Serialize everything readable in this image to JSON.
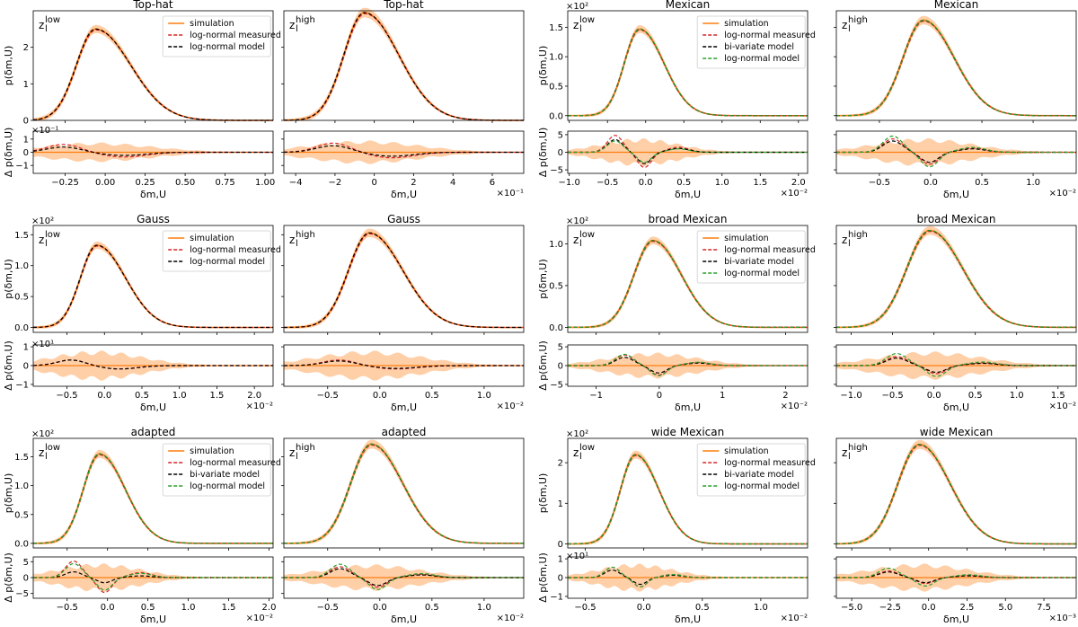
{
  "figure": {
    "title": "Figure grid of PDFs p(delta_m,U) with residual panels"
  },
  "chart_data": [
    {
      "type": "line",
      "title": "Top-hat",
      "z_label": "z",
      "z_sup": "low",
      "legend": [
        "simulation",
        "log-normal measured",
        "log-normal model"
      ],
      "series": [
        {
          "name": "simulation",
          "color": "#ff7f0e"
        },
        {
          "name": "log-normal measured",
          "color": "#d62728"
        },
        {
          "name": "log-normal model",
          "color": "#000000"
        }
      ],
      "ylabel": "p(δm,U)",
      "top_mult": "",
      "top_ylim": [
        0,
        3
      ],
      "top_yticks": [
        "0",
        "1",
        "2"
      ],
      "top_ytick_vals": [
        0,
        1,
        2
      ],
      "peak": {
        "x": -0.06,
        "y": 2.5,
        "sigma_l": 0.12,
        "sigma_r": 0.22
      },
      "xlim": [
        -0.45,
        1.05
      ],
      "xticks": [
        "−0.25",
        "0.00",
        "0.25",
        "0.50",
        "0.75",
        "1.00"
      ],
      "xtick_vals": [
        -0.25,
        0,
        0.25,
        0.5,
        0.75,
        1.0
      ],
      "xlabel": "δm,U",
      "x_mult": "",
      "resid_ylabel": "Δ p(δm,U)",
      "resid_mult": "×10⁻¹",
      "resid_ylim": [
        -1.6,
        1.6
      ],
      "resid_yticks": [
        "−1",
        "0",
        "1"
      ],
      "resid_ytick_vals": [
        -1,
        0,
        1
      ],
      "resid_band": 0.75,
      "resid_amp": [
        0.6,
        0.4,
        0.0
      ]
    },
    {
      "type": "line",
      "title": "Top-hat",
      "z_label": "z",
      "z_sup": "high",
      "legend": [],
      "series": [
        {
          "name": "simulation",
          "color": "#ff7f0e"
        },
        {
          "name": "log-normal measured",
          "color": "#d62728"
        },
        {
          "name": "log-normal model",
          "color": "#000000"
        }
      ],
      "ylabel": "",
      "top_mult": "",
      "top_ylim": [
        0,
        3
      ],
      "top_yticks": [],
      "top_ytick_vals": [
        0,
        1,
        2
      ],
      "peak": {
        "x": -0.5,
        "y": 2.95,
        "sigma_l": 1.05,
        "sigma_r": 1.75
      },
      "xlim": [
        -4.6,
        7.6
      ],
      "xticks": [
        "−4",
        "−2",
        "0",
        "2",
        "4",
        "6"
      ],
      "xtick_vals": [
        -4,
        -2,
        0,
        2,
        4,
        6
      ],
      "xlabel": "δm,U",
      "x_mult": "×10⁻¹",
      "resid_ylabel": "",
      "resid_mult": "",
      "resid_ylim": [
        -1.6,
        1.6
      ],
      "resid_yticks": [],
      "resid_ytick_vals": [
        -1,
        0,
        1
      ],
      "resid_band": 0.9,
      "resid_amp": [
        0.7,
        0.5,
        0.0
      ]
    },
    {
      "type": "line",
      "title": "Mexican",
      "z_label": "z",
      "z_sup": "low",
      "legend": [
        "simulation",
        "log-normal measured",
        "bi-variate model",
        "log-normal model"
      ],
      "series": [
        {
          "name": "simulation",
          "color": "#ff7f0e"
        },
        {
          "name": "log-normal measured",
          "color": "#d62728"
        },
        {
          "name": "bi-variate model",
          "color": "#000000"
        },
        {
          "name": "log-normal model",
          "color": "#2ca02c"
        }
      ],
      "ylabel": "p(δm,U)",
      "top_mult": "×10²",
      "top_ylim": [
        -0.08,
        1.78
      ],
      "top_yticks": [
        "0.0",
        "0.5",
        "1.0",
        "1.5"
      ],
      "top_ytick_vals": [
        0,
        0.5,
        1.0,
        1.5
      ],
      "peak": {
        "x": -0.08,
        "y": 1.47,
        "sigma_l": 0.2,
        "sigma_r": 0.32
      },
      "xlim": [
        -1.02,
        2.12
      ],
      "xticks": [
        "−1.0",
        "−0.5",
        "0.0",
        "0.5",
        "1.0",
        "1.5",
        "2.0"
      ],
      "xtick_vals": [
        -1,
        -0.5,
        0,
        0.5,
        1,
        1.5,
        2
      ],
      "xlabel": "δm,U",
      "x_mult": "×10⁻²",
      "resid_ylabel": "Δ p(δm,U)",
      "resid_mult": "",
      "resid_ylim": [
        -6,
        6
      ],
      "resid_yticks": [
        "−5",
        "0",
        "5"
      ],
      "resid_ytick_vals": [
        -5,
        0,
        5
      ],
      "resid_band": 4.0,
      "resid_amp": [
        4.8,
        3.6,
        3.2
      ]
    },
    {
      "type": "line",
      "title": "Mexican",
      "z_label": "z",
      "z_sup": "high",
      "legend": [],
      "series": [
        {
          "name": "simulation",
          "color": "#ff7f0e"
        },
        {
          "name": "log-normal measured",
          "color": "#d62728"
        },
        {
          "name": "bi-variate model",
          "color": "#000000"
        },
        {
          "name": "log-normal model",
          "color": "#2ca02c"
        }
      ],
      "ylabel": "",
      "top_mult": "",
      "top_ylim": [
        -0.08,
        1.78
      ],
      "top_yticks": [],
      "top_ytick_vals": [
        0,
        0.5,
        1.0,
        1.5
      ],
      "peak": {
        "x": -0.07,
        "y": 1.62,
        "sigma_l": 0.2,
        "sigma_r": 0.3
      },
      "xlim": [
        -0.92,
        1.42
      ],
      "xticks": [
        "−0.5",
        "0.0",
        "0.5",
        "1.0"
      ],
      "xtick_vals": [
        -0.5,
        0,
        0.5,
        1.0
      ],
      "xlabel": "δm,U",
      "x_mult": "×10⁻²",
      "resid_ylabel": "",
      "resid_mult": "",
      "resid_ylim": [
        -6,
        6
      ],
      "resid_yticks": [],
      "resid_ytick_vals": [
        -5,
        0,
        5
      ],
      "resid_band": 4.0,
      "resid_amp": [
        3.8,
        3.2,
        4.6
      ]
    },
    {
      "type": "line",
      "title": "Gauss",
      "z_label": "z",
      "z_sup": "low",
      "legend": [
        "simulation",
        "log-normal measured",
        "log-normal model"
      ],
      "series": [
        {
          "name": "simulation",
          "color": "#ff7f0e"
        },
        {
          "name": "log-normal measured",
          "color": "#d62728"
        },
        {
          "name": "log-normal model",
          "color": "#000000"
        }
      ],
      "ylabel": "p(δm,U)",
      "top_mult": "×10²",
      "top_ylim": [
        -0.08,
        1.65
      ],
      "top_yticks": [
        "0.0",
        "0.5",
        "1.0",
        "1.5"
      ],
      "top_ytick_vals": [
        0,
        0.5,
        1.0,
        1.5
      ],
      "peak": {
        "x": -0.1,
        "y": 1.33,
        "sigma_l": 0.22,
        "sigma_r": 0.38
      },
      "xlim": [
        -0.95,
        2.25
      ],
      "xticks": [
        "−0.5",
        "0.0",
        "0.5",
        "1.0",
        "1.5",
        "2.0"
      ],
      "xtick_vals": [
        -0.5,
        0,
        0.5,
        1,
        1.5,
        2
      ],
      "xlabel": "δm,U",
      "x_mult": "×10⁻²",
      "resid_ylabel": "Δ p(δm,U)",
      "resid_mult": "×10¹",
      "resid_ylim": [
        -1.1,
        1.1
      ],
      "resid_yticks": [
        "−1",
        "0",
        "1"
      ],
      "resid_ytick_vals": [
        -1,
        0,
        1
      ],
      "resid_band": 0.8,
      "resid_amp": [
        0.3,
        0.3,
        0.0
      ]
    },
    {
      "type": "line",
      "title": "Gauss",
      "z_label": "z",
      "z_sup": "high",
      "legend": [],
      "series": [
        {
          "name": "simulation",
          "color": "#ff7f0e"
        },
        {
          "name": "log-normal measured",
          "color": "#d62728"
        },
        {
          "name": "log-normal model",
          "color": "#000000"
        }
      ],
      "ylabel": "",
      "top_mult": "",
      "top_ylim": [
        -0.08,
        1.65
      ],
      "top_yticks": [],
      "top_ytick_vals": [
        0,
        0.5,
        1.0,
        1.5
      ],
      "peak": {
        "x": -0.1,
        "y": 1.53,
        "sigma_l": 0.2,
        "sigma_r": 0.32
      },
      "xlim": [
        -0.92,
        1.38
      ],
      "xticks": [
        "−0.5",
        "0.0",
        "0.5",
        "1.0"
      ],
      "xtick_vals": [
        -0.5,
        0,
        0.5,
        1.0
      ],
      "xlabel": "δm,U",
      "x_mult": "×10⁻²",
      "resid_ylabel": "",
      "resid_mult": "",
      "resid_ylim": [
        -1.1,
        1.1
      ],
      "resid_yticks": [],
      "resid_ytick_vals": [
        -1,
        0,
        1
      ],
      "resid_band": 0.8,
      "resid_amp": [
        0.3,
        0.25,
        0.0
      ]
    },
    {
      "type": "line",
      "title": "broad Mexican",
      "z_label": "z",
      "z_sup": "low",
      "legend": [
        "simulation",
        "log-normal measured",
        "bi-variate model",
        "log-normal model"
      ],
      "series": [
        {
          "name": "simulation",
          "color": "#ff7f0e"
        },
        {
          "name": "log-normal measured",
          "color": "#d62728"
        },
        {
          "name": "bi-variate model",
          "color": "#000000"
        },
        {
          "name": "log-normal model",
          "color": "#2ca02c"
        }
      ],
      "ylabel": "p(δm,U)",
      "top_mult": "×10²",
      "top_ylim": [
        -0.06,
        1.22
      ],
      "top_yticks": [
        "0.0",
        "0.5",
        "1.0"
      ],
      "top_ytick_vals": [
        0,
        0.5,
        1.0
      ],
      "peak": {
        "x": -0.1,
        "y": 1.04,
        "sigma_l": 0.3,
        "sigma_r": 0.45
      },
      "xlim": [
        -1.45,
        2.35
      ],
      "xticks": [
        "−1",
        "0",
        "1",
        "2"
      ],
      "xtick_vals": [
        -1,
        0,
        1,
        2
      ],
      "xlabel": "δm,U",
      "x_mult": "×10⁻²",
      "resid_ylabel": "Δ p(δm,U)",
      "resid_mult": "",
      "resid_ylim": [
        -5.5,
        5.5
      ],
      "resid_yticks": [
        "−5",
        "0",
        "5"
      ],
      "resid_ytick_vals": [
        -5,
        0,
        5
      ],
      "resid_band": 3.5,
      "resid_amp": [
        2.8,
        2.2,
        3.0
      ]
    },
    {
      "type": "line",
      "title": "broad Mexican",
      "z_label": "z",
      "z_sup": "high",
      "legend": [],
      "series": [
        {
          "name": "simulation",
          "color": "#ff7f0e"
        },
        {
          "name": "log-normal measured",
          "color": "#d62728"
        },
        {
          "name": "bi-variate model",
          "color": "#000000"
        },
        {
          "name": "log-normal model",
          "color": "#2ca02c"
        }
      ],
      "ylabel": "",
      "top_mult": "",
      "top_ylim": [
        -0.06,
        1.22
      ],
      "top_yticks": [],
      "top_ytick_vals": [
        0,
        0.5,
        1.0
      ],
      "peak": {
        "x": -0.05,
        "y": 1.16,
        "sigma_l": 0.28,
        "sigma_r": 0.4
      },
      "xlim": [
        -1.18,
        1.72
      ],
      "xticks": [
        "−1.0",
        "−0.5",
        "0.0",
        "0.5",
        "1.0",
        "1.5"
      ],
      "xtick_vals": [
        -1,
        -0.5,
        0,
        0.5,
        1,
        1.5
      ],
      "xlabel": "δm,U",
      "x_mult": "×10⁻²",
      "resid_ylabel": "",
      "resid_mult": "",
      "resid_ylim": [
        -5.5,
        5.5
      ],
      "resid_yticks": [],
      "resid_ytick_vals": [
        -5,
        0,
        5
      ],
      "resid_band": 3.8,
      "resid_amp": [
        2.4,
        2.0,
        3.2
      ]
    },
    {
      "type": "line",
      "title": "adapted",
      "z_label": "z",
      "z_sup": "low",
      "legend": [
        "simulation",
        "log-normal measured",
        "bi-variate model",
        "log-normal model"
      ],
      "series": [
        {
          "name": "simulation",
          "color": "#ff7f0e"
        },
        {
          "name": "log-normal measured",
          "color": "#d62728"
        },
        {
          "name": "bi-variate model",
          "color": "#000000"
        },
        {
          "name": "log-normal model",
          "color": "#2ca02c"
        }
      ],
      "ylabel": "p(δm,U)",
      "top_mult": "×10²",
      "top_ylim": [
        -0.08,
        1.82
      ],
      "top_yticks": [
        "0.0",
        "0.5",
        "1.0",
        "1.5"
      ],
      "top_ytick_vals": [
        0,
        0.5,
        1.0,
        1.5
      ],
      "peak": {
        "x": -0.1,
        "y": 1.55,
        "sigma_l": 0.2,
        "sigma_r": 0.32
      },
      "xlim": [
        -0.92,
        2.05
      ],
      "xticks": [
        "−0.5",
        "0.0",
        "0.5",
        "1.0",
        "1.5",
        "2.0"
      ],
      "xtick_vals": [
        -0.5,
        0,
        0.5,
        1,
        1.5,
        2
      ],
      "xlabel": "δm,U",
      "x_mult": "×10⁻²",
      "resid_ylabel": "Δ p(δm,U)",
      "resid_mult": "",
      "resid_ylim": [
        -6.5,
        6.5
      ],
      "resid_yticks": [
        "−5",
        "0",
        "5"
      ],
      "resid_ytick_vals": [
        -5,
        0,
        5
      ],
      "resid_band": 4.5,
      "resid_amp": [
        5.2,
        1.8,
        4.4
      ]
    },
    {
      "type": "line",
      "title": "adapted",
      "z_label": "z",
      "z_sup": "high",
      "legend": [],
      "series": [
        {
          "name": "simulation",
          "color": "#ff7f0e"
        },
        {
          "name": "log-normal measured",
          "color": "#d62728"
        },
        {
          "name": "bi-variate model",
          "color": "#000000"
        },
        {
          "name": "log-normal model",
          "color": "#2ca02c"
        }
      ],
      "ylabel": "",
      "top_mult": "",
      "top_ylim": [
        -0.08,
        1.82
      ],
      "top_yticks": [],
      "top_ytick_vals": [
        0,
        0.5,
        1.0,
        1.5
      ],
      "peak": {
        "x": -0.08,
        "y": 1.72,
        "sigma_l": 0.2,
        "sigma_r": 0.3
      },
      "xlim": [
        -0.92,
        1.38
      ],
      "xticks": [
        "−0.5",
        "0.0",
        "0.5",
        "1.0"
      ],
      "xtick_vals": [
        -0.5,
        0,
        0.5,
        1.0
      ],
      "xlabel": "δm,U",
      "x_mult": "×10⁻²",
      "resid_ylabel": "",
      "resid_mult": "",
      "resid_ylim": [
        -6.5,
        6.5
      ],
      "resid_yticks": [],
      "resid_ytick_vals": [
        -5,
        0,
        5
      ],
      "resid_band": 4.2,
      "resid_amp": [
        3.4,
        2.8,
        4.2
      ]
    },
    {
      "type": "line",
      "title": "wide Mexican",
      "z_label": "z",
      "z_sup": "low",
      "legend": [
        "simulation",
        "log-normal measured",
        "bi-variate model",
        "log-normal model"
      ],
      "series": [
        {
          "name": "simulation",
          "color": "#ff7f0e"
        },
        {
          "name": "log-normal measured",
          "color": "#d62728"
        },
        {
          "name": "bi-variate model",
          "color": "#000000"
        },
        {
          "name": "log-normal model",
          "color": "#2ca02c"
        }
      ],
      "ylabel": "p(δm,U)",
      "top_mult": "×10²",
      "top_ylim": [
        -0.1,
        2.6
      ],
      "top_yticks": [
        "0",
        "1",
        "2"
      ],
      "top_ytick_vals": [
        0,
        1,
        2
      ],
      "peak": {
        "x": -0.07,
        "y": 2.2,
        "sigma_l": 0.13,
        "sigma_r": 0.2
      },
      "xlim": [
        -0.65,
        1.4
      ],
      "xticks": [
        "−0.5",
        "0.0",
        "0.5",
        "1.0"
      ],
      "xtick_vals": [
        -0.5,
        0,
        0.5,
        1.0
      ],
      "xlabel": "δm,U",
      "x_mult": "×10⁻²",
      "resid_ylabel": "Δ p(δm,U)",
      "resid_mult": "×10¹",
      "resid_ylim": [
        -1.1,
        1.1
      ],
      "resid_yticks": [
        "−1",
        "0",
        "1"
      ],
      "resid_ytick_vals": [
        -1,
        0,
        1
      ],
      "resid_band": 0.75,
      "resid_amp": [
        0.55,
        0.4,
        0.55
      ]
    },
    {
      "type": "line",
      "title": "wide Mexican",
      "z_label": "z",
      "z_sup": "high",
      "legend": [],
      "series": [
        {
          "name": "simulation",
          "color": "#ff7f0e"
        },
        {
          "name": "log-normal measured",
          "color": "#d62728"
        },
        {
          "name": "bi-variate model",
          "color": "#000000"
        },
        {
          "name": "log-normal model",
          "color": "#2ca02c"
        }
      ],
      "ylabel": "",
      "top_mult": "",
      "top_ylim": [
        -0.1,
        2.6
      ],
      "top_yticks": [],
      "top_ytick_vals": [
        0,
        1,
        2
      ],
      "peak": {
        "x": -0.6,
        "y": 2.45,
        "sigma_l": 1.4,
        "sigma_r": 2.0
      },
      "xlim": [
        -6.0,
        9.6
      ],
      "xticks": [
        "−5.0",
        "−2.5",
        "0.0",
        "2.5",
        "5.0",
        "7.5"
      ],
      "xtick_vals": [
        -5,
        -2.5,
        0,
        2.5,
        5,
        7.5
      ],
      "xlabel": "δm,U",
      "x_mult": "×10⁻³",
      "resid_ylabel": "",
      "resid_mult": "",
      "resid_ylim": [
        -1.1,
        1.1
      ],
      "resid_yticks": [],
      "resid_ytick_vals": [
        -1,
        0,
        1
      ],
      "resid_band": 0.75,
      "resid_amp": [
        0.35,
        0.3,
        0.5
      ]
    }
  ]
}
